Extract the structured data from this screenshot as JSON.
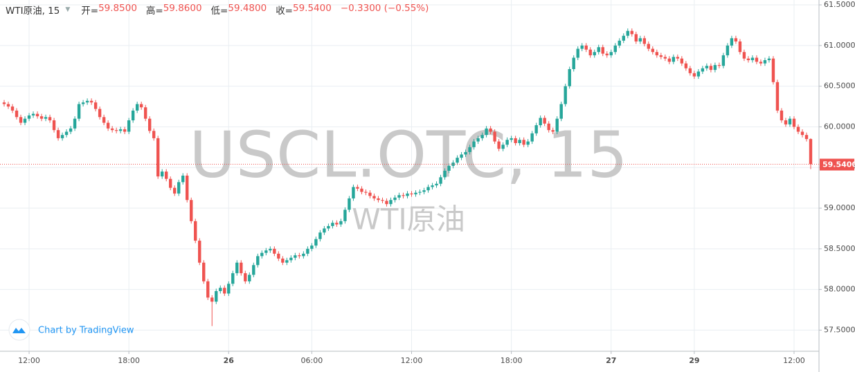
{
  "chart_data": {
    "type": "candlestick",
    "title": "WTI原油, 15",
    "header": [
      {
        "label": "开=",
        "value": "59.8500"
      },
      {
        "label": "高=",
        "value": "59.8600"
      },
      {
        "label": "低=",
        "value": "59.4800"
      },
      {
        "label": "收=",
        "value": "59.5400"
      }
    ],
    "change": "−0.3300 (−0.55%)",
    "watermark": "USCL.OTC, 15",
    "watermark_subtitle": "WTI原油",
    "attribution": "Chart by TradingView",
    "up_color": "#26a69a",
    "down_color": "#ef5350",
    "grid": true,
    "last_price": {
      "value": 59.54,
      "label": "59.5400"
    },
    "ylim": [
      57.24,
      61.56
    ],
    "yticks": [
      {
        "value": 57.5,
        "label": "57.5000"
      },
      {
        "value": 58,
        "label": "58.0000"
      },
      {
        "value": 58.5,
        "label": "58.5000"
      },
      {
        "value": 59,
        "label": "59.0000"
      },
      {
        "value": 59.5,
        "label": "59.5000"
      },
      {
        "value": 60,
        "label": "60.0000"
      },
      {
        "value": 60.5,
        "label": "60.5000"
      },
      {
        "value": 61,
        "label": "61.0000"
      },
      {
        "value": 61.5,
        "label": "61.5000"
      }
    ],
    "xlim": [
      -1,
      196
    ],
    "xticks": [
      {
        "value": 6,
        "label": "12:00"
      },
      {
        "value": 30,
        "label": "18:00"
      },
      {
        "value": 54,
        "label": "26"
      },
      {
        "value": 74,
        "label": "06:00"
      },
      {
        "value": 98,
        "label": "12:00"
      },
      {
        "value": 122,
        "label": "18:00"
      },
      {
        "value": 146,
        "label": "27"
      },
      {
        "value": 166,
        "label": "29"
      },
      {
        "value": 190,
        "label": "12:00"
      }
    ],
    "open": [
      60.3,
      60.28,
      60.25,
      60.2,
      60.12,
      60.05,
      60.1,
      60.14,
      60.16,
      60.13,
      60.1,
      60.12,
      60.08,
      59.96,
      59.86,
      59.9,
      59.94,
      59.98,
      60.1,
      60.28,
      60.3,
      60.32,
      60.3,
      60.22,
      60.12,
      60.05,
      59.98,
      59.96,
      59.95,
      59.97,
      59.94,
      60.08,
      60.2,
      60.28,
      60.24,
      60.1,
      59.95,
      59.86,
      59.39,
      59.45,
      59.36,
      59.25,
      59.18,
      59.32,
      59.4,
      59.1,
      58.84,
      58.6,
      58.33,
      58.1,
      57.9,
      57.85,
      57.98,
      58.02,
      57.95,
      58.07,
      58.2,
      58.33,
      58.2,
      58.1,
      58.18,
      58.3,
      58.41,
      58.45,
      58.48,
      58.5,
      58.44,
      58.38,
      58.33,
      58.36,
      58.39,
      58.42,
      58.41,
      58.44,
      58.5,
      58.54,
      58.62,
      58.7,
      58.75,
      58.78,
      58.82,
      58.8,
      58.84,
      58.98,
      59.12,
      59.26,
      59.24,
      59.2,
      59.19,
      59.15,
      59.12,
      59.1,
      59.09,
      59.05,
      59.1,
      59.13,
      59.16,
      59.15,
      59.18,
      59.17,
      59.19,
      59.2,
      59.22,
      59.26,
      59.28,
      59.3,
      59.38,
      59.46,
      59.52,
      59.56,
      59.62,
      59.66,
      59.69,
      59.75,
      59.82,
      59.86,
      59.9,
      59.98,
      59.94,
      59.82,
      59.73,
      59.78,
      59.84,
      59.86,
      59.8,
      59.84,
      59.78,
      59.82,
      59.92,
      60.02,
      60.11,
      60.04,
      59.96,
      59.94,
      60.1,
      60.28,
      60.5,
      60.71,
      60.85,
      60.96,
      61.0,
      60.95,
      60.88,
      60.92,
      60.98,
      60.9,
      60.88,
      60.92,
      61.0,
      61.06,
      61.12,
      61.18,
      61.14,
      61.05,
      61.09,
      61.02,
      60.96,
      60.92,
      60.88,
      60.86,
      60.84,
      60.8,
      60.86,
      60.84,
      60.78,
      60.72,
      60.66,
      60.62,
      60.68,
      60.72,
      60.75,
      60.7,
      60.76,
      60.75,
      60.88,
      61.0,
      61.09,
      61.05,
      60.92,
      60.84,
      60.82,
      60.85,
      60.8,
      60.78,
      60.82,
      60.84,
      60.55,
      60.2,
      60.08,
      60.03,
      60.1,
      60.0,
      59.94,
      59.9,
      59.85
    ],
    "high": [
      60.33,
      60.31,
      60.28,
      60.23,
      60.15,
      60.13,
      60.17,
      60.19,
      60.19,
      60.16,
      60.15,
      60.15,
      60.11,
      59.99,
      59.93,
      59.97,
      60.01,
      60.13,
      60.31,
      60.33,
      60.35,
      60.35,
      60.33,
      60.25,
      60.15,
      60.08,
      60.01,
      59.99,
      60.0,
      60.0,
      60.11,
      60.23,
      60.31,
      60.31,
      60.27,
      60.13,
      59.98,
      59.89,
      59.48,
      59.48,
      59.39,
      59.28,
      59.35,
      59.43,
      59.43,
      59.13,
      58.87,
      58.63,
      58.36,
      58.13,
      57.93,
      58.01,
      58.05,
      58.05,
      58.1,
      58.23,
      58.36,
      58.36,
      58.23,
      58.21,
      58.33,
      58.44,
      58.48,
      58.51,
      58.53,
      58.53,
      58.47,
      58.41,
      58.39,
      58.42,
      58.45,
      58.45,
      58.47,
      58.53,
      58.57,
      58.65,
      58.73,
      58.78,
      58.81,
      58.85,
      58.85,
      58.87,
      59.01,
      59.15,
      59.29,
      59.29,
      59.27,
      59.23,
      59.22,
      59.18,
      59.15,
      59.13,
      59.12,
      59.13,
      59.16,
      59.19,
      59.19,
      59.21,
      59.21,
      59.22,
      59.23,
      59.25,
      59.29,
      59.31,
      59.33,
      59.41,
      59.49,
      59.55,
      59.59,
      59.65,
      59.69,
      59.72,
      59.78,
      59.85,
      59.89,
      59.93,
      60.01,
      60.01,
      59.97,
      59.85,
      59.81,
      59.87,
      59.89,
      59.89,
      59.87,
      59.87,
      59.85,
      59.95,
      60.05,
      60.14,
      60.14,
      60.07,
      59.99,
      60.13,
      60.31,
      60.53,
      60.74,
      60.88,
      60.99,
      61.03,
      61.03,
      60.98,
      60.95,
      61.01,
      61.01,
      60.93,
      60.95,
      61.03,
      61.09,
      61.15,
      61.21,
      61.21,
      61.17,
      61.12,
      61.12,
      61.05,
      60.99,
      60.95,
      60.91,
      60.89,
      60.87,
      60.89,
      60.89,
      60.87,
      60.81,
      60.75,
      60.69,
      60.71,
      60.75,
      60.78,
      60.78,
      60.79,
      60.79,
      60.91,
      61.03,
      61.12,
      61.12,
      61.08,
      60.95,
      60.87,
      60.88,
      60.88,
      60.83,
      60.85,
      60.87,
      60.87,
      60.58,
      60.23,
      60.11,
      60.13,
      60.13,
      60.03,
      59.97,
      59.93,
      59.86
    ],
    "low": [
      60.25,
      60.22,
      60.17,
      60.09,
      60.02,
      60.02,
      60.07,
      60.11,
      60.1,
      60.07,
      60.07,
      60.05,
      59.93,
      59.83,
      59.83,
      59.87,
      59.91,
      59.95,
      60.07,
      60.25,
      60.27,
      60.27,
      60.19,
      60.09,
      60.02,
      59.95,
      59.93,
      59.92,
      59.92,
      59.91,
      59.91,
      60.05,
      60.17,
      60.21,
      60.07,
      59.92,
      59.83,
      59.36,
      59.36,
      59.33,
      59.22,
      59.15,
      59.15,
      59.29,
      59.07,
      58.81,
      58.57,
      58.3,
      58.07,
      57.87,
      57.55,
      57.82,
      57.95,
      57.92,
      57.92,
      58.04,
      58.17,
      58.17,
      58.07,
      58.07,
      58.15,
      58.27,
      58.38,
      58.42,
      58.45,
      58.41,
      58.35,
      58.3,
      58.3,
      58.33,
      58.36,
      58.38,
      58.38,
      58.41,
      58.47,
      58.51,
      58.59,
      58.67,
      58.72,
      58.75,
      58.77,
      58.77,
      58.81,
      58.95,
      59.09,
      59.21,
      59.17,
      59.16,
      59.12,
      59.09,
      59.07,
      59.06,
      59.02,
      59.02,
      59.07,
      59.1,
      59.12,
      59.12,
      59.14,
      59.14,
      59.16,
      59.17,
      59.19,
      59.23,
      59.25,
      59.27,
      59.35,
      59.43,
      59.49,
      59.53,
      59.59,
      59.63,
      59.66,
      59.72,
      59.79,
      59.83,
      59.87,
      59.91,
      59.79,
      59.7,
      59.7,
      59.75,
      59.81,
      59.77,
      59.77,
      59.75,
      59.75,
      59.79,
      59.89,
      59.99,
      60.01,
      59.93,
      59.91,
      59.91,
      60.07,
      60.25,
      60.47,
      60.68,
      60.82,
      60.93,
      60.92,
      60.85,
      60.85,
      60.89,
      60.87,
      60.85,
      60.85,
      60.89,
      60.97,
      61.03,
      61.09,
      61.11,
      61.02,
      61.02,
      60.99,
      60.93,
      60.89,
      60.85,
      60.83,
      60.81,
      60.77,
      60.77,
      60.81,
      60.75,
      60.69,
      60.63,
      60.59,
      60.59,
      60.65,
      60.69,
      60.67,
      60.67,
      60.72,
      60.72,
      60.85,
      60.97,
      61.02,
      60.89,
      60.81,
      60.79,
      60.79,
      60.77,
      60.75,
      60.75,
      60.79,
      60.52,
      60.17,
      60.05,
      60.0,
      60.0,
      59.97,
      59.91,
      59.87,
      59.82,
      59.48
    ],
    "close": [
      60.28,
      60.25,
      60.2,
      60.12,
      60.05,
      60.1,
      60.14,
      60.16,
      60.13,
      60.1,
      60.12,
      60.08,
      59.96,
      59.86,
      59.9,
      59.94,
      59.98,
      60.1,
      60.28,
      60.3,
      60.32,
      60.3,
      60.22,
      60.12,
      60.05,
      59.98,
      59.96,
      59.95,
      59.97,
      59.94,
      60.08,
      60.2,
      60.28,
      60.24,
      60.1,
      59.95,
      59.86,
      59.39,
      59.45,
      59.36,
      59.25,
      59.18,
      59.32,
      59.4,
      59.1,
      58.84,
      58.6,
      58.33,
      58.1,
      57.9,
      57.85,
      57.98,
      58.02,
      57.95,
      58.07,
      58.2,
      58.33,
      58.2,
      58.1,
      58.18,
      58.3,
      58.41,
      58.45,
      58.48,
      58.5,
      58.44,
      58.38,
      58.33,
      58.36,
      58.39,
      58.42,
      58.41,
      58.44,
      58.5,
      58.54,
      58.62,
      58.7,
      58.75,
      58.78,
      58.82,
      58.8,
      58.84,
      58.98,
      59.12,
      59.26,
      59.24,
      59.2,
      59.19,
      59.15,
      59.12,
      59.1,
      59.09,
      59.05,
      59.1,
      59.13,
      59.16,
      59.15,
      59.18,
      59.17,
      59.19,
      59.2,
      59.22,
      59.26,
      59.28,
      59.3,
      59.38,
      59.46,
      59.52,
      59.56,
      59.62,
      59.66,
      59.69,
      59.75,
      59.82,
      59.86,
      59.9,
      59.98,
      59.94,
      59.82,
      59.73,
      59.78,
      59.84,
      59.86,
      59.8,
      59.84,
      59.78,
      59.82,
      59.92,
      60.02,
      60.11,
      60.04,
      59.96,
      59.94,
      60.1,
      60.28,
      60.5,
      60.71,
      60.85,
      60.96,
      61.0,
      60.95,
      60.88,
      60.92,
      60.98,
      60.9,
      60.88,
      60.92,
      61.0,
      61.06,
      61.12,
      61.18,
      61.14,
      61.05,
      61.09,
      61.02,
      60.96,
      60.92,
      60.88,
      60.86,
      60.84,
      60.8,
      60.86,
      60.84,
      60.78,
      60.72,
      60.66,
      60.62,
      60.68,
      60.72,
      60.75,
      60.7,
      60.76,
      60.75,
      60.88,
      61.0,
      61.09,
      61.05,
      60.92,
      60.84,
      60.82,
      60.85,
      60.8,
      60.78,
      60.82,
      60.84,
      60.55,
      60.2,
      60.08,
      60.03,
      60.1,
      60.0,
      59.94,
      59.9,
      59.85,
      59.54
    ]
  }
}
